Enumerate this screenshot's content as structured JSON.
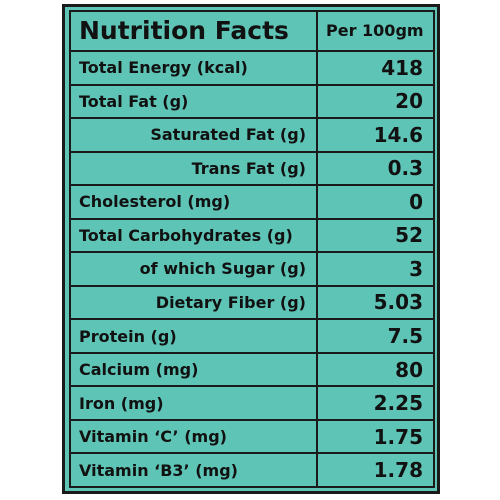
{
  "header": {
    "title": "Nutrition Facts",
    "per": "Per 100gm"
  },
  "rows": [
    {
      "label": "Total Energy (kcal)",
      "value": "418"
    },
    {
      "label": "Total Fat (g)",
      "value": "20"
    },
    {
      "label": "Saturated Fat (g)",
      "value": "14.6"
    },
    {
      "label": "Trans Fat (g)",
      "value": "0.3"
    },
    {
      "label": "Cholesterol (mg)",
      "value": "0"
    },
    {
      "label": "Total Carbohydrates (g)",
      "value": "52"
    },
    {
      "label": "of which Sugar (g)",
      "value": "3"
    },
    {
      "label": "Dietary Fiber (g)",
      "value": "5.03"
    },
    {
      "label": "Protein (g)",
      "value": "7.5"
    },
    {
      "label": "Calcium (mg)",
      "value": "80"
    },
    {
      "label": "Iron (mg)",
      "value": "2.25"
    },
    {
      "label": "Vitamin ‘C’ (mg)",
      "value": "1.75"
    },
    {
      "label": "Vitamin ‘B3’ (mg)",
      "value": "1.78"
    }
  ],
  "colors": {
    "background": "#5ec4b6",
    "border": "#1a1a1a"
  }
}
